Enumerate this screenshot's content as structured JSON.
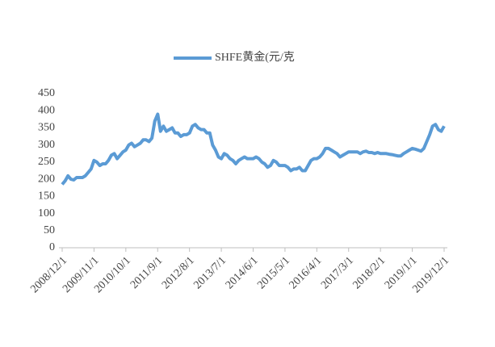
{
  "chart_data": {
    "type": "line",
    "categories": [
      "2008/12/1",
      null,
      null,
      null,
      null,
      null,
      null,
      null,
      null,
      null,
      null,
      "2009/11/1",
      null,
      null,
      null,
      null,
      null,
      null,
      null,
      null,
      null,
      null,
      "2010/10/1",
      null,
      null,
      null,
      null,
      null,
      null,
      null,
      null,
      null,
      null,
      "2011/9/1",
      null,
      null,
      null,
      null,
      null,
      null,
      null,
      null,
      null,
      null,
      "2012/8/1",
      null,
      null,
      null,
      null,
      null,
      null,
      null,
      null,
      null,
      null,
      "2013/7/1",
      null,
      null,
      null,
      null,
      null,
      null,
      null,
      null,
      null,
      null,
      "2014/6/1",
      null,
      null,
      null,
      null,
      null,
      null,
      null,
      null,
      null,
      null,
      "2015/5/1",
      null,
      null,
      null,
      null,
      null,
      null,
      null,
      null,
      null,
      null,
      "2016/4/1",
      null,
      null,
      null,
      null,
      null,
      null,
      null,
      null,
      null,
      null,
      "2017/3/1",
      null,
      null,
      null,
      null,
      null,
      null,
      null,
      null,
      null,
      null,
      "2018/2/1",
      null,
      null,
      null,
      null,
      null,
      null,
      null,
      null,
      null,
      null,
      "2019/1/1",
      null,
      null,
      null,
      null,
      null,
      null,
      null,
      null,
      null,
      null,
      "2019/12/1"
    ],
    "series": [
      {
        "name": "SHFE黄金(元/克",
        "color": "#5b9bd5",
        "values": [
          185,
          195,
          210,
          200,
          198,
          205,
          205,
          205,
          210,
          220,
          230,
          255,
          250,
          240,
          245,
          245,
          255,
          270,
          275,
          260,
          270,
          280,
          285,
          300,
          305,
          295,
          300,
          305,
          315,
          315,
          310,
          320,
          370,
          390,
          340,
          355,
          340,
          345,
          350,
          335,
          335,
          325,
          330,
          330,
          335,
          355,
          360,
          350,
          345,
          345,
          335,
          335,
          300,
          285,
          265,
          260,
          275,
          270,
          260,
          255,
          245,
          255,
          260,
          265,
          260,
          260,
          260,
          265,
          260,
          250,
          245,
          235,
          240,
          255,
          250,
          240,
          240,
          240,
          235,
          225,
          230,
          230,
          235,
          225,
          225,
          240,
          255,
          260,
          260,
          265,
          275,
          290,
          290,
          285,
          280,
          275,
          265,
          270,
          275,
          280,
          280,
          280,
          280,
          275,
          280,
          282,
          278,
          278,
          275,
          278,
          275,
          275,
          275,
          273,
          272,
          270,
          268,
          268,
          275,
          280,
          285,
          290,
          288,
          285,
          282,
          290,
          310,
          330,
          355,
          360,
          345,
          340,
          355
        ]
      }
    ],
    "ylim": [
      0,
      450
    ],
    "yticks": [
      0,
      50,
      100,
      150,
      200,
      250,
      300,
      350,
      400,
      450
    ],
    "legend": "top",
    "grid": false
  }
}
